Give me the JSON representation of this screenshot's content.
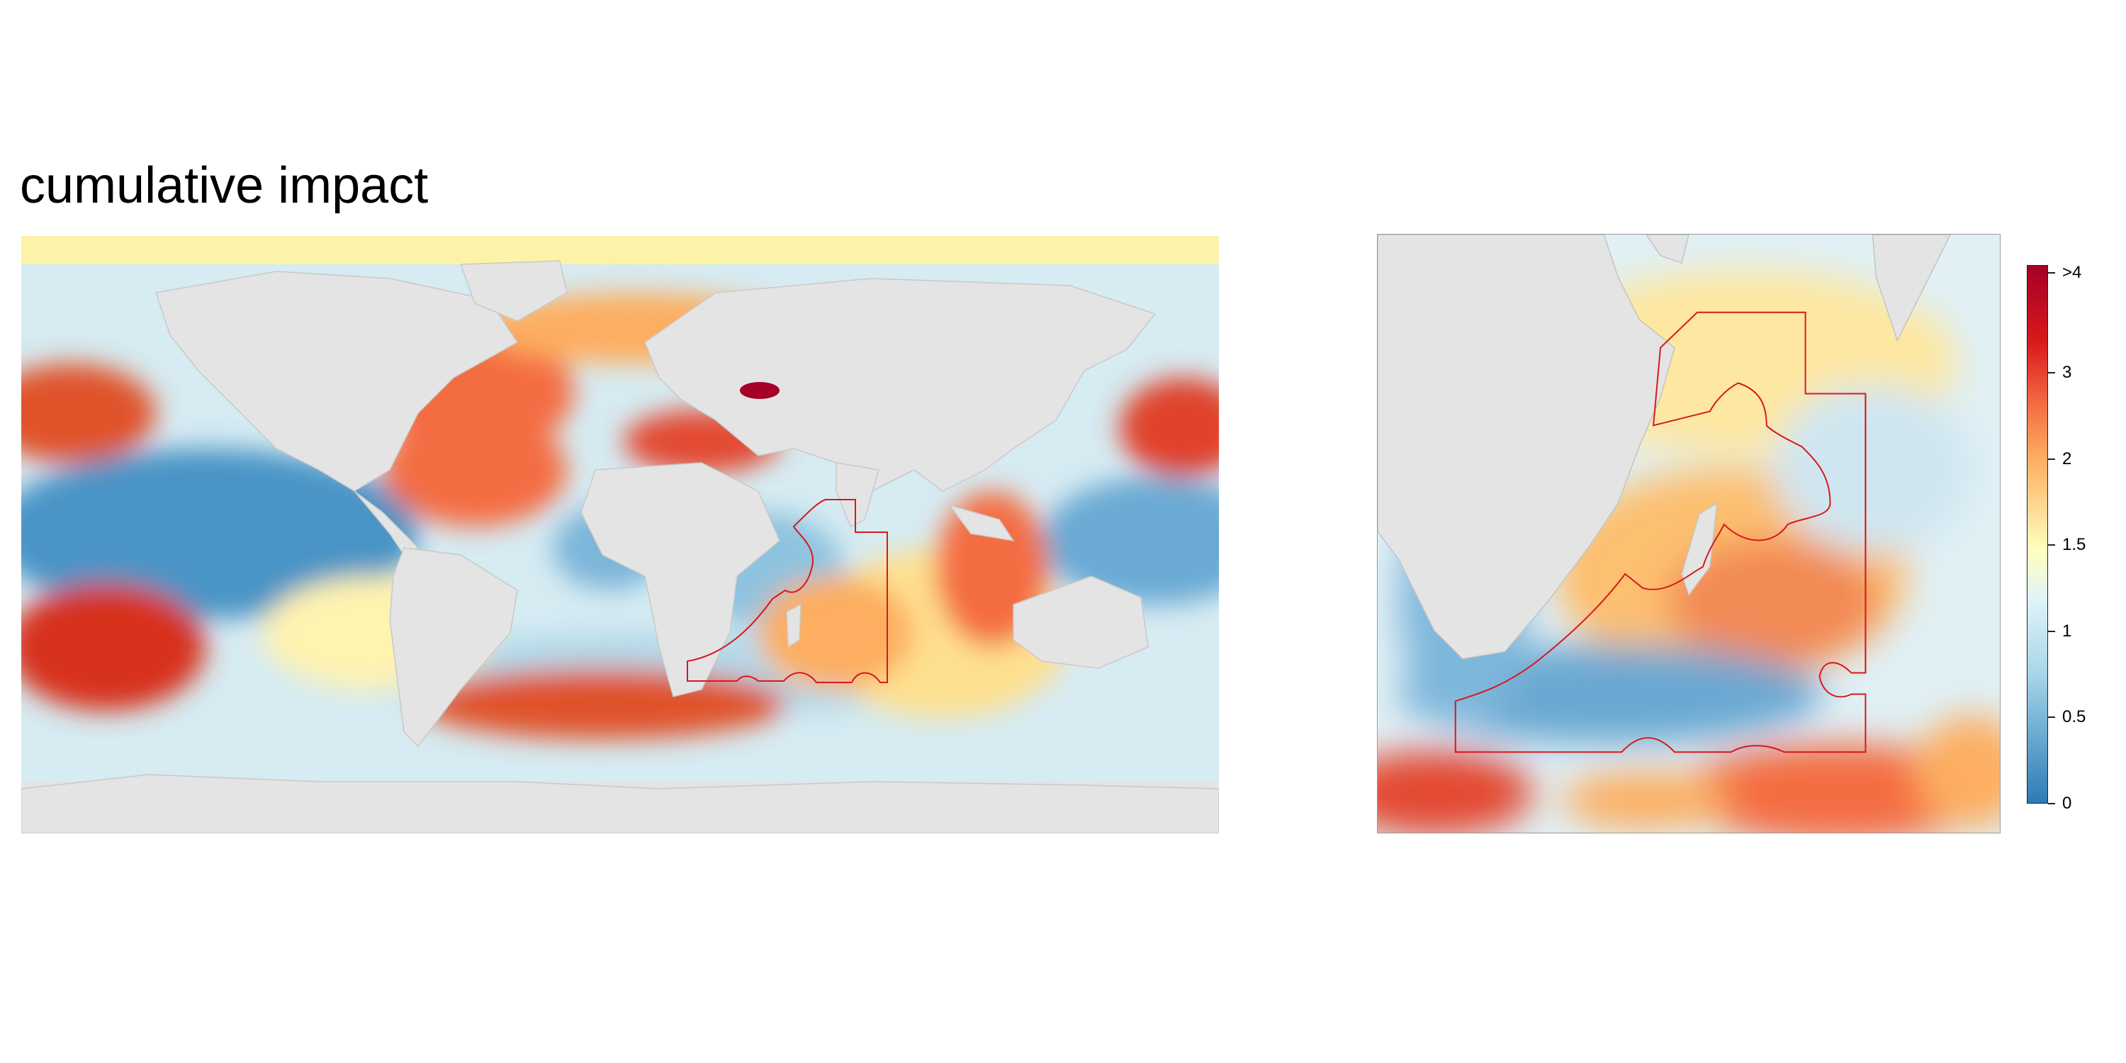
{
  "title": "cumulative impact",
  "legend": {
    "labels": [
      "0",
      "0.5",
      "1",
      "1.5",
      "2",
      "3",
      ">4"
    ],
    "stops": [
      0,
      0.5,
      1,
      1.5,
      2,
      3,
      4
    ],
    "max": 4
  },
  "colors": {
    "land": "#e4e4e4",
    "boundary": "#d7191c",
    "low": "#2c7bb6",
    "light_blue": "#abd9e9",
    "pale": "#ffffbf",
    "orange": "#fdae61",
    "red": "#d7191c",
    "dark_red": "#a50026"
  },
  "icons": [
    "world-map",
    "zoom-map",
    "colorbar"
  ]
}
